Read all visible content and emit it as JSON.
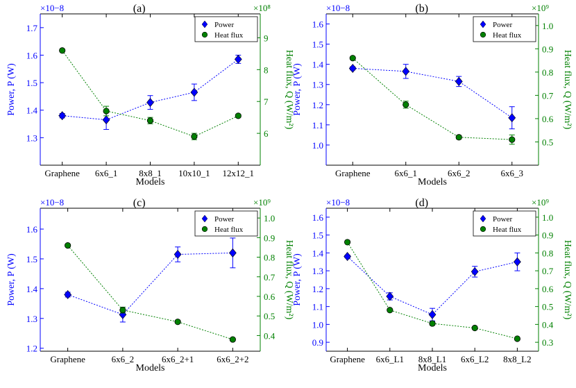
{
  "colors": {
    "power": "#0000ff",
    "heat": "#008000",
    "axis": "#000000"
  },
  "legend": {
    "power": "Power",
    "heat": "Heat flux"
  },
  "chart_data": [
    {
      "type": "line",
      "title": "(a)",
      "xlabel": "Models",
      "ylabel": "Power, P (W)",
      "y2label": "Heat flux, Q (W/m²)",
      "y_scale_label": "×10−8",
      "y2_scale_label": "×10⁸",
      "categories": [
        "Graphene",
        "6x6_1",
        "8x8_1",
        "10x10_1",
        "12x12_1"
      ],
      "ylim": [
        1.2,
        1.75
      ],
      "yticks": [
        1.3,
        1.4,
        1.5,
        1.6,
        1.7
      ],
      "y2lim": [
        5,
        9.75
      ],
      "y2ticks": [
        6,
        7,
        8,
        9
      ],
      "legend_position": "top-right",
      "series": [
        {
          "name": "Power",
          "axis": "left",
          "marker": "diamond",
          "values": [
            1.38,
            1.365,
            1.428,
            1.465,
            1.585
          ],
          "errors": [
            0.008,
            0.035,
            0.025,
            0.03,
            0.015
          ]
        },
        {
          "name": "Heat flux",
          "axis": "right",
          "marker": "circle",
          "values": [
            8.6,
            6.7,
            6.4,
            5.9,
            6.55
          ],
          "errors": [
            0,
            0.15,
            0.1,
            0.1,
            0.05
          ]
        }
      ]
    },
    {
      "type": "line",
      "title": "(b)",
      "xlabel": "Models",
      "ylabel": "Power, P (W)",
      "y2label": "Heat flux, Q (W/m²)",
      "y_scale_label": "×10−8",
      "y2_scale_label": "×10⁹",
      "categories": [
        "Graphene",
        "6x6_1",
        "6x6_2",
        "6x6_3"
      ],
      "ylim": [
        0.9,
        1.65
      ],
      "yticks": [
        1.0,
        1.1,
        1.2,
        1.3,
        1.4,
        1.5,
        1.6
      ],
      "y2lim": [
        0.4,
        1.05
      ],
      "y2ticks": [
        0.5,
        0.6,
        0.7,
        0.8,
        0.9,
        1.0
      ],
      "legend_position": "top-right",
      "series": [
        {
          "name": "Power",
          "axis": "left",
          "marker": "diamond",
          "values": [
            1.38,
            1.365,
            1.315,
            1.135
          ],
          "errors": [
            0.008,
            0.035,
            0.025,
            0.055
          ]
        },
        {
          "name": "Heat flux",
          "axis": "right",
          "marker": "circle",
          "values": [
            0.86,
            0.66,
            0.52,
            0.51
          ],
          "errors": [
            0,
            0.015,
            0.008,
            0.02
          ]
        }
      ]
    },
    {
      "type": "line",
      "title": "(c)",
      "xlabel": "Models",
      "ylabel": "Power, P (W)",
      "y2label": "Heat flux, Q (W/m²)",
      "y_scale_label": "×10−8",
      "y2_scale_label": "×10⁹",
      "categories": [
        "Graphene",
        "6x6_2",
        "6x6_2+1",
        "6x6_2+2"
      ],
      "ylim": [
        1.19,
        1.67
      ],
      "yticks": [
        1.2,
        1.3,
        1.4,
        1.5,
        1.6
      ],
      "y2lim": [
        0.32,
        1.05
      ],
      "y2ticks": [
        0.4,
        0.5,
        0.6,
        0.7,
        0.8,
        0.9,
        1.0
      ],
      "legend_position": "top-right",
      "series": [
        {
          "name": "Power",
          "axis": "left",
          "marker": "diamond",
          "values": [
            1.38,
            1.313,
            1.515,
            1.52
          ],
          "errors": [
            0.008,
            0.025,
            0.025,
            0.05
          ]
        },
        {
          "name": "Heat flux",
          "axis": "right",
          "marker": "circle",
          "values": [
            0.86,
            0.53,
            0.47,
            0.38
          ],
          "errors": [
            0,
            0.015,
            0,
            0
          ]
        }
      ]
    },
    {
      "type": "line",
      "title": "(d)",
      "xlabel": "Models",
      "ylabel": "Power, P (W)",
      "y2label": "Heat flux, Q (W/m²)",
      "y_scale_label": "×10−8",
      "y2_scale_label": "×10⁹",
      "categories": [
        "Graphene",
        "6x6_L1",
        "8x8_L1",
        "6x6_L2",
        "8x8_L2"
      ],
      "ylim": [
        0.85,
        1.65
      ],
      "yticks": [
        0.9,
        1.0,
        1.1,
        1.2,
        1.3,
        1.4,
        1.5,
        1.6
      ],
      "y2lim": [
        0.25,
        1.05
      ],
      "y2ticks": [
        0.3,
        0.4,
        0.5,
        0.6,
        0.7,
        0.8,
        0.9,
        1.0
      ],
      "legend_position": "top-right",
      "series": [
        {
          "name": "Power",
          "axis": "left",
          "marker": "diamond",
          "values": [
            1.38,
            1.157,
            1.055,
            1.295,
            1.35
          ],
          "errors": [
            0.008,
            0.02,
            0.035,
            0.03,
            0.05
          ]
        },
        {
          "name": "Heat flux",
          "axis": "right",
          "marker": "circle",
          "values": [
            0.86,
            0.48,
            0.405,
            0.38,
            0.32
          ],
          "errors": [
            0,
            0,
            0.01,
            0,
            0
          ]
        }
      ]
    }
  ]
}
